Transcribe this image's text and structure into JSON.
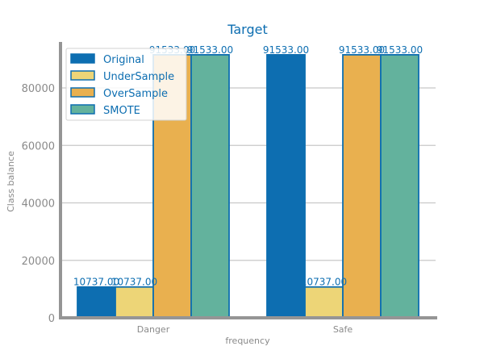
{
  "chart_data": {
    "type": "bar",
    "title": "Target",
    "xlabel": "frequency",
    "ylabel": "Class balance",
    "categories": [
      "Danger",
      "Safe"
    ],
    "ylim": [
      0,
      96000
    ],
    "yticks": [
      0,
      20000,
      40000,
      60000,
      80000
    ],
    "grid": true,
    "legend_position": "top-left",
    "series": [
      {
        "name": "Original",
        "values": [
          10737.0,
          91533.0
        ],
        "labels": [
          "10737.00",
          "91533.00"
        ],
        "color": "#0d6eb1"
      },
      {
        "name": "UnderSample",
        "values": [
          10737.0,
          10737.0
        ],
        "labels": [
          "10737.00",
          "10737.00"
        ],
        "color": "#edd577"
      },
      {
        "name": "OverSample",
        "values": [
          91533.0,
          91533.0
        ],
        "labels": [
          "91533.00",
          "91533.00"
        ],
        "color": "#e9b04f"
      },
      {
        "name": "SMOTE",
        "values": [
          91533.0,
          91533.0
        ],
        "labels": [
          "91533.00",
          "91533.00"
        ],
        "color": "#63b29d"
      }
    ],
    "edge_color": "#0d6eb1",
    "grid_color": "#c8c8c8",
    "axis_color": "#959595"
  }
}
